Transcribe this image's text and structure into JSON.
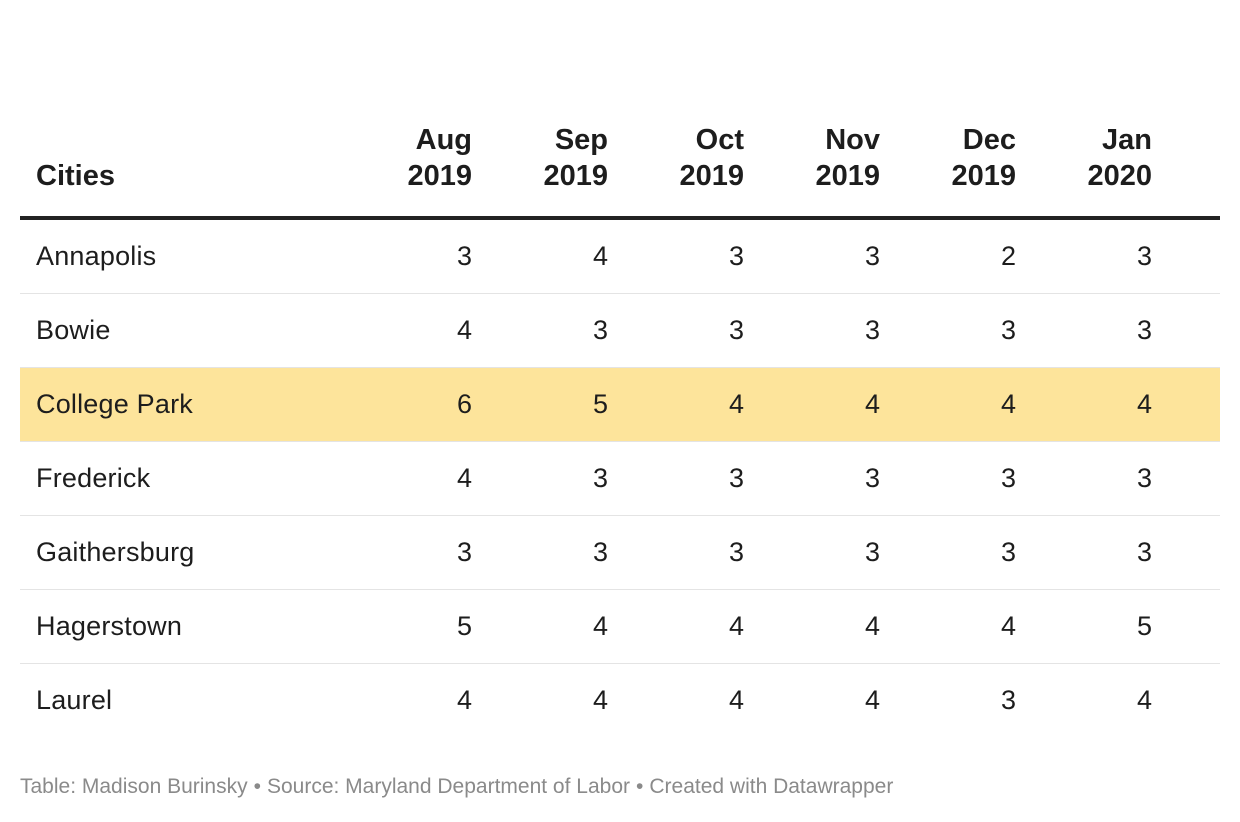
{
  "chart_data": {
    "type": "table",
    "columns": [
      "Cities",
      "Aug\n2019",
      "Sep\n2019",
      "Oct\n2019",
      "Nov\n2019",
      "Dec\n2019",
      "Jan\n2020"
    ],
    "rows": [
      {
        "city": "Annapolis",
        "values": [
          3,
          4,
          3,
          3,
          2,
          3
        ]
      },
      {
        "city": "Bowie",
        "values": [
          4,
          3,
          3,
          3,
          3,
          3
        ]
      },
      {
        "city": "College Park",
        "values": [
          6,
          5,
          4,
          4,
          4,
          4
        ],
        "highlighted": true
      },
      {
        "city": "Frederick",
        "values": [
          4,
          3,
          3,
          3,
          3,
          3
        ]
      },
      {
        "city": "Gaithersburg",
        "values": [
          3,
          3,
          3,
          3,
          3,
          3
        ]
      },
      {
        "city": "Hagerstown",
        "values": [
          5,
          4,
          4,
          4,
          4,
          5
        ]
      },
      {
        "city": "Laurel",
        "values": [
          4,
          4,
          4,
          4,
          3,
          4
        ]
      }
    ],
    "highlight_color": "#fde49b"
  },
  "footer": {
    "table_credit": "Table: Madison Burinsky",
    "source": "Source: Maryland Department of Labor",
    "created": "Created with Datawrapper",
    "separator": "•"
  }
}
